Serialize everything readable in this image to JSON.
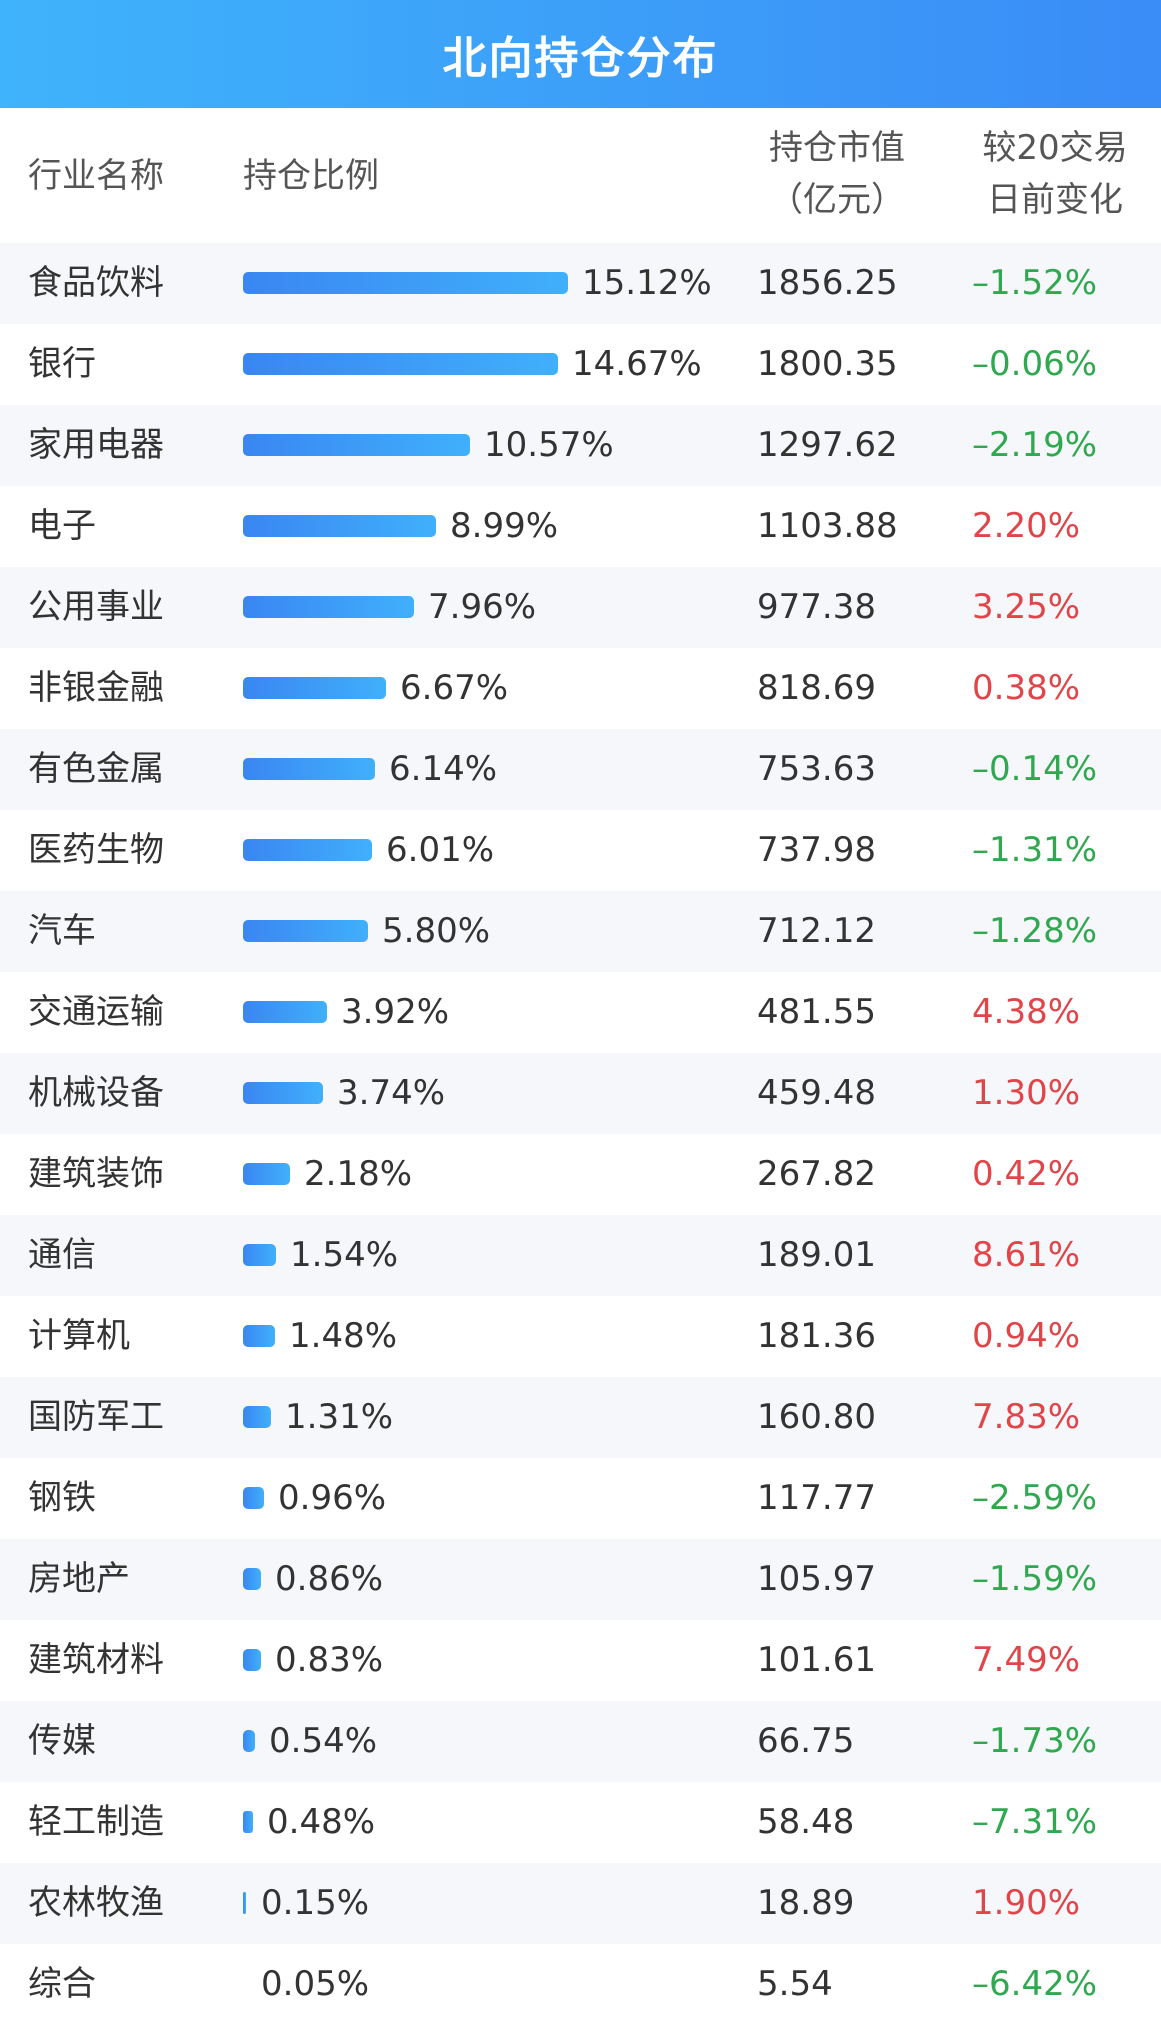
{
  "title": "北向持仓分布",
  "header": {
    "industry": "行业名称",
    "ratio": "持仓比例",
    "value_line1": "持仓市值",
    "value_line2": "（亿元）",
    "change_line1": "较20交易",
    "change_line2": "日前变化"
  },
  "colors": {
    "positive": "#e0454a",
    "negative": "#2fa84f",
    "bar": "#3a86f2",
    "title_bg": "#3a9cf8"
  },
  "chart_data": {
    "type": "table",
    "max_ratio": 15.12,
    "rows": [
      {
        "industry": "食品饮料",
        "ratio": 15.12,
        "ratio_label": "15.12%",
        "value": "1856.25",
        "change": "–1.52%",
        "change_value": -1.52
      },
      {
        "industry": "银行",
        "ratio": 14.67,
        "ratio_label": "14.67%",
        "value": "1800.35",
        "change": "–0.06%",
        "change_value": -0.06
      },
      {
        "industry": "家用电器",
        "ratio": 10.57,
        "ratio_label": "10.57%",
        "value": "1297.62",
        "change": "–2.19%",
        "change_value": -2.19
      },
      {
        "industry": "电子",
        "ratio": 8.99,
        "ratio_label": "8.99%",
        "value": "1103.88",
        "change": "2.20%",
        "change_value": 2.2
      },
      {
        "industry": "公用事业",
        "ratio": 7.96,
        "ratio_label": "7.96%",
        "value": "977.38",
        "change": "3.25%",
        "change_value": 3.25
      },
      {
        "industry": "非银金融",
        "ratio": 6.67,
        "ratio_label": "6.67%",
        "value": "818.69",
        "change": "0.38%",
        "change_value": 0.38
      },
      {
        "industry": "有色金属",
        "ratio": 6.14,
        "ratio_label": "6.14%",
        "value": "753.63",
        "change": "–0.14%",
        "change_value": -0.14
      },
      {
        "industry": "医药生物",
        "ratio": 6.01,
        "ratio_label": "6.01%",
        "value": "737.98",
        "change": "–1.31%",
        "change_value": -1.31
      },
      {
        "industry": "汽车",
        "ratio": 5.8,
        "ratio_label": "5.80%",
        "value": "712.12",
        "change": "–1.28%",
        "change_value": -1.28
      },
      {
        "industry": "交通运输",
        "ratio": 3.92,
        "ratio_label": "3.92%",
        "value": "481.55",
        "change": "4.38%",
        "change_value": 4.38
      },
      {
        "industry": "机械设备",
        "ratio": 3.74,
        "ratio_label": "3.74%",
        "value": "459.48",
        "change": "1.30%",
        "change_value": 1.3
      },
      {
        "industry": "建筑装饰",
        "ratio": 2.18,
        "ratio_label": "2.18%",
        "value": "267.82",
        "change": "0.42%",
        "change_value": 0.42
      },
      {
        "industry": "通信",
        "ratio": 1.54,
        "ratio_label": "1.54%",
        "value": "189.01",
        "change": "8.61%",
        "change_value": 8.61
      },
      {
        "industry": "计算机",
        "ratio": 1.48,
        "ratio_label": "1.48%",
        "value": "181.36",
        "change": "0.94%",
        "change_value": 0.94
      },
      {
        "industry": "国防军工",
        "ratio": 1.31,
        "ratio_label": "1.31%",
        "value": "160.80",
        "change": "7.83%",
        "change_value": 7.83
      },
      {
        "industry": "钢铁",
        "ratio": 0.96,
        "ratio_label": "0.96%",
        "value": "117.77",
        "change": "–2.59%",
        "change_value": -2.59
      },
      {
        "industry": "房地产",
        "ratio": 0.86,
        "ratio_label": "0.86%",
        "value": "105.97",
        "change": "–1.59%",
        "change_value": -1.59
      },
      {
        "industry": "建筑材料",
        "ratio": 0.83,
        "ratio_label": "0.83%",
        "value": "101.61",
        "change": "7.49%",
        "change_value": 7.49
      },
      {
        "industry": "传媒",
        "ratio": 0.54,
        "ratio_label": "0.54%",
        "value": "66.75",
        "change": "–1.73%",
        "change_value": -1.73
      },
      {
        "industry": "轻工制造",
        "ratio": 0.48,
        "ratio_label": "0.48%",
        "value": "58.48",
        "change": "–7.31%",
        "change_value": -7.31
      },
      {
        "industry": "农林牧渔",
        "ratio": 0.15,
        "ratio_label": "0.15%",
        "value": "18.89",
        "change": "1.90%",
        "change_value": 1.9
      },
      {
        "industry": "综合",
        "ratio": 0.05,
        "ratio_label": "0.05%",
        "value": "5.54",
        "change": "–6.42%",
        "change_value": -6.42
      }
    ]
  }
}
